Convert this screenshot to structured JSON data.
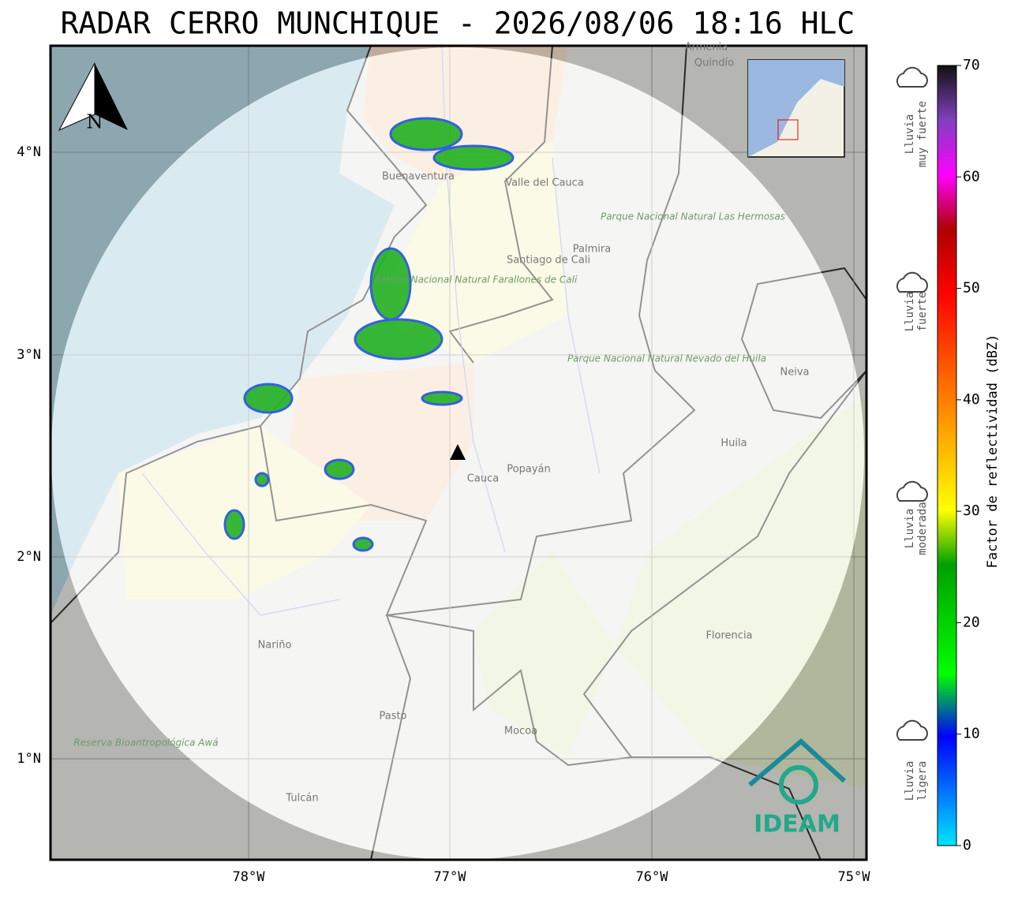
{
  "header": {
    "title": "RADAR CERRO MUNCHIQUE - 2026/08/06 18:16 HLC"
  },
  "map": {
    "north": "N",
    "lat_labels": [
      "4°N",
      "3°N",
      "2°N",
      "1°N"
    ],
    "lon_labels": [
      "78°W",
      "77°W",
      "76°W",
      "75°W"
    ],
    "places": [
      "Buenaventura",
      "Valle del Cauca",
      "Palmira",
      "Santiago de Cali",
      "Parque Nacional Natural Las Hermosas",
      "Parque Nacional Natural Farallones de Cali",
      "Parque Nacional Natural Nevado del Huila",
      "Neiva",
      "Huila",
      "Popayán",
      "Cauca",
      "Nariño",
      "Florencia",
      "Pasto",
      "Mocoa",
      "Reserva Bioantropológica Awá",
      "Tulcán",
      "Armenia",
      "Quindío"
    ],
    "logo": "IDEAM"
  },
  "colorbar": {
    "label": "Factor de reflectividad (dBZ)",
    "ticks": [
      0,
      10,
      20,
      30,
      40,
      50,
      60,
      70
    ]
  },
  "legend": [
    {
      "lines": [
        "Lluvia",
        "muy fuerte"
      ]
    },
    {
      "lines": [
        "Lluvia",
        "fuerte"
      ]
    },
    {
      "lines": [
        "Lluvia",
        "moderada"
      ]
    },
    {
      "lines": [
        "Lluvia",
        "ligera"
      ]
    }
  ]
}
